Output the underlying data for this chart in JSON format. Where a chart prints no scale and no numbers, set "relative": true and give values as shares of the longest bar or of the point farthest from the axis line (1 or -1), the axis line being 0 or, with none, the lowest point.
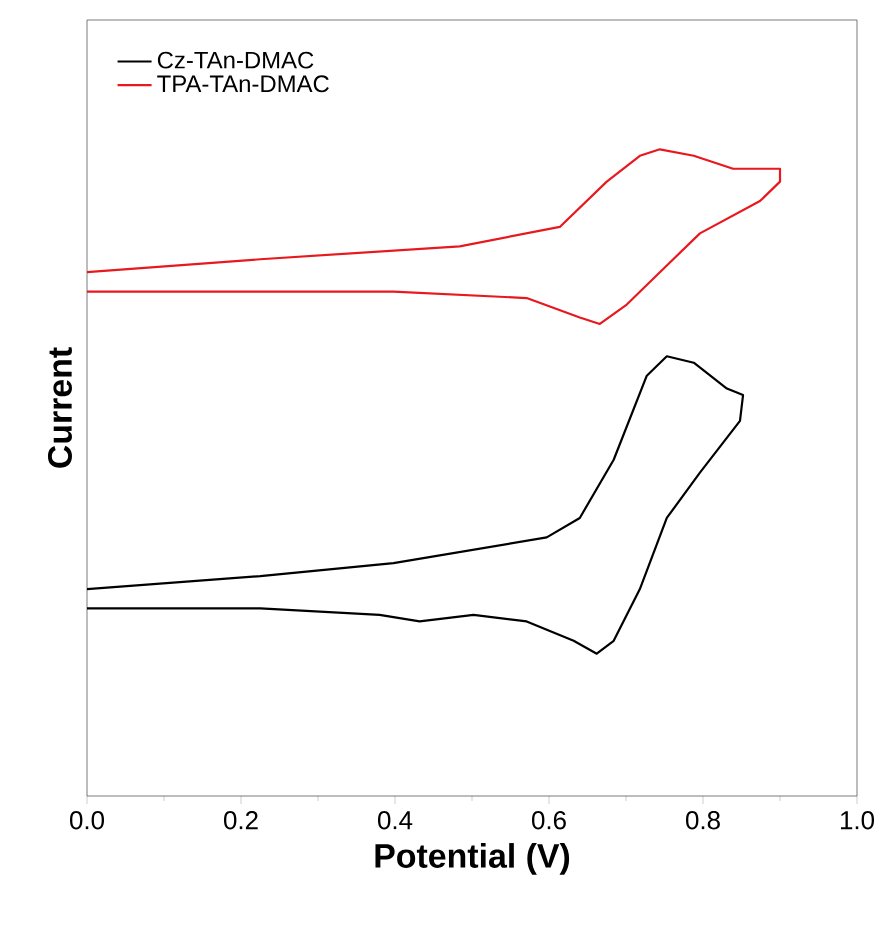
{
  "chart_data": {
    "type": "line",
    "xlabel": "Potential (V)",
    "ylabel": "Current",
    "relative": true,
    "legend": "top left",
    "xlim": [
      0,
      1
    ],
    "xticks": [
      {
        "value": 0,
        "label": "0.0"
      },
      0.2,
      0.4,
      0.6,
      0.8,
      {
        "value": 1,
        "label": "1.0"
      }
    ],
    "series": [
      {
        "name": "Cz-TAn-DMAC",
        "color": "#000000",
        "x": [
          0.0,
          0.225,
          0.398,
          0.597,
          0.64,
          0.684,
          0.727,
          0.753,
          0.788,
          0.831,
          0.852,
          0.848,
          0.796,
          0.753,
          0.718,
          0.684,
          0.662,
          0.632,
          0.571,
          0.502,
          0.432,
          0.38,
          0.225,
          0.0
        ],
        "values": [
          0.32,
          0.34,
          0.36,
          0.4,
          0.43,
          0.52,
          0.65,
          0.68,
          0.67,
          0.63,
          0.62,
          0.58,
          0.5,
          0.43,
          0.32,
          0.24,
          0.22,
          0.24,
          0.27,
          0.28,
          0.27,
          0.28,
          0.29,
          0.29
        ]
      },
      {
        "name": "TPA-TAn-DMAC",
        "color": "#e8191e",
        "x": [
          0.0,
          0.225,
          0.484,
          0.614,
          0.675,
          0.718,
          0.744,
          0.788,
          0.839,
          0.9,
          0.9,
          0.874,
          0.796,
          0.744,
          0.701,
          0.666,
          0.64,
          0.571,
          0.398,
          0.0
        ],
        "values": [
          0.81,
          0.83,
          0.85,
          0.88,
          0.95,
          0.99,
          1.0,
          0.99,
          0.97,
          0.97,
          0.95,
          0.92,
          0.87,
          0.81,
          0.76,
          0.73,
          0.74,
          0.77,
          0.78,
          0.78
        ]
      }
    ]
  }
}
